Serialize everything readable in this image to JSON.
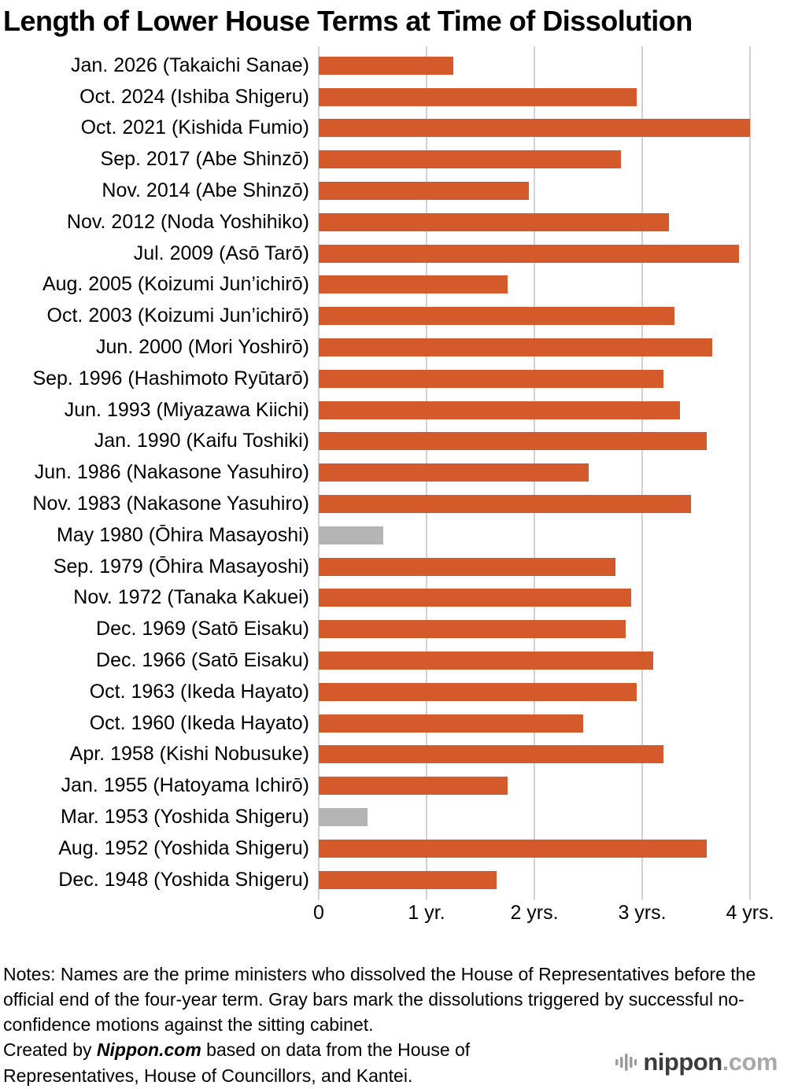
{
  "title": "Length of Lower House Terms at Time of Dissolution",
  "chart_data": {
    "type": "bar",
    "orientation": "horizontal",
    "unit": "years",
    "xlim": [
      0,
      4
    ],
    "x_ticks": [
      {
        "value": 0,
        "label": "0"
      },
      {
        "value": 1,
        "label": "1 yr."
      },
      {
        "value": 2,
        "label": "2 yrs."
      },
      {
        "value": 3,
        "label": "3 yrs."
      },
      {
        "value": 4,
        "label": "4 yrs."
      }
    ],
    "grid": true,
    "bar_color": "#d4592b",
    "no_confidence_color": "#b4b4b4",
    "grid_color": "#d2d2d2",
    "categories": [
      "Jan. 2026 (Takaichi Sanae)",
      "Oct. 2024 (Ishiba Shigeru)",
      "Oct. 2021 (Kishida Fumio)",
      "Sep. 2017 (Abe Shinzō)",
      "Nov. 2014 (Abe Shinzō)",
      "Nov. 2012 (Noda Yoshihiko)",
      "Jul. 2009 (Asō Tarō)",
      "Aug. 2005 (Koizumi Jun’ichirō)",
      "Oct. 2003 (Koizumi Jun’ichirō)",
      "Jun. 2000 (Mori Yoshirō)",
      "Sep. 1996 (Hashimoto Ryūtarō)",
      "Jun. 1993 (Miyazawa Kiichi)",
      "Jan. 1990 (Kaifu Toshiki)",
      "Jun. 1986 (Nakasone Yasuhiro)",
      "Nov. 1983 (Nakasone Yasuhiro)",
      "May 1980 (Ōhira Masayoshi)",
      "Sep. 1979 (Ōhira Masayoshi)",
      "Nov. 1972 (Tanaka Kakuei)",
      "Dec. 1969 (Satō Eisaku)",
      "Dec. 1966 (Satō Eisaku)",
      "Oct. 1963 (Ikeda Hayato)",
      "Oct. 1960 (Ikeda Hayato)",
      "Apr. 1958 (Kishi Nobusuke)",
      "Jan. 1955 (Hatoyama Ichirō)",
      "Mar. 1953 (Yoshida Shigeru)",
      "Aug. 1952 (Yoshida Shigeru)",
      "Dec. 1948 (Yoshida Shigeru)"
    ],
    "values": [
      1.25,
      2.95,
      4.0,
      2.8,
      1.95,
      3.25,
      3.9,
      1.75,
      3.3,
      3.65,
      3.2,
      3.35,
      3.6,
      2.5,
      3.45,
      0.6,
      2.75,
      2.9,
      2.85,
      3.1,
      2.95,
      2.45,
      3.2,
      1.75,
      0.45,
      3.6,
      1.65
    ],
    "no_confidence": [
      false,
      false,
      false,
      false,
      false,
      false,
      false,
      false,
      false,
      false,
      false,
      false,
      false,
      false,
      false,
      true,
      false,
      false,
      false,
      false,
      false,
      false,
      false,
      false,
      true,
      false,
      false
    ]
  },
  "notes": {
    "body": "Notes: Names are the prime ministers who dissolved the House of Representatives before the official end of the four-year term. Gray bars mark the dissolutions triggered by successful no-confidence motions against the sitting cabinet.",
    "credit_prefix": "Created by ",
    "credit_brand": "Nippon.com",
    "credit_suffix": " based on data from the House of Representatives, House of Councillors, and Kantei."
  },
  "logo": {
    "name": "nippon",
    "tld": ".com"
  }
}
